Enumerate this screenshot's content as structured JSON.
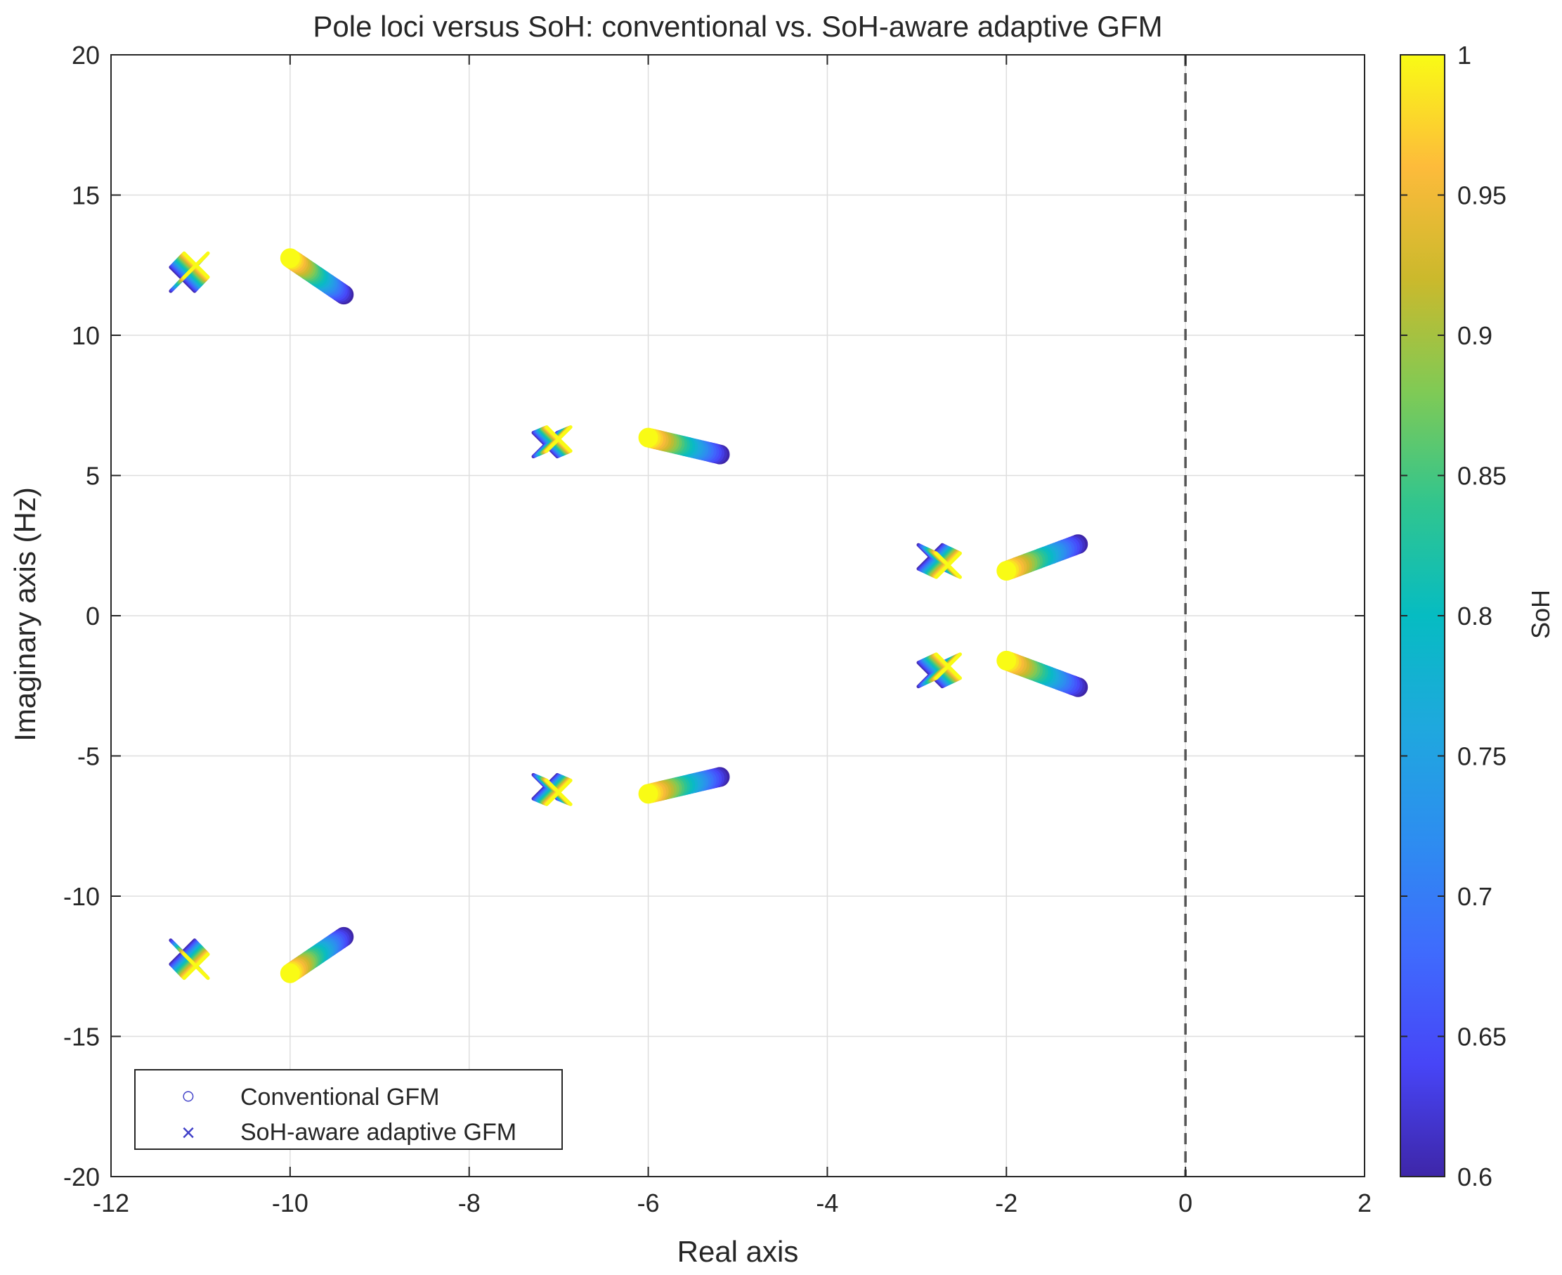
{
  "colors": {
    "axes_frame": "#262626",
    "grid": "#dedede",
    "marker": "#4040c8",
    "stability_line": "#555555"
  },
  "chart_data": {
    "type": "scatter",
    "title": "Pole loci versus SoH: conventional vs. SoH-aware adaptive GFM",
    "xlabel": "Real axis",
    "ylabel": "Imaginary axis (Hz)",
    "xlim": [
      -12,
      2
    ],
    "ylim": [
      -20,
      20
    ],
    "xticks": [
      -12,
      -10,
      -8,
      -6,
      -4,
      -2,
      0,
      2
    ],
    "yticks": [
      -20,
      -15,
      -10,
      -5,
      0,
      5,
      10,
      15,
      20
    ],
    "grid": true,
    "reference_line": {
      "x": 0,
      "style": "dashed"
    },
    "colorbar": {
      "label": "SoH",
      "limits": [
        0.6,
        1
      ],
      "ticks": [
        0.6,
        0.65,
        0.7,
        0.75,
        0.8,
        0.85,
        0.9,
        0.95,
        1
      ]
    },
    "legend": {
      "location": "bottom-left",
      "entries": [
        {
          "name": "Conventional GFM",
          "marker": "○"
        },
        {
          "name": "SoH-aware adaptive GFM",
          "marker": "×"
        }
      ]
    },
    "series": [
      {
        "name": "Conventional GFM",
        "marker": "o",
        "loci": [
          {
            "soh_range": [
              0.6,
              1
            ],
            "start": [
              -9.4,
              11.45
            ],
            "end": [
              -10.0,
              12.75
            ]
          },
          {
            "soh_range": [
              0.6,
              1
            ],
            "start": [
              -9.4,
              -11.45
            ],
            "end": [
              -10.0,
              -12.75
            ]
          },
          {
            "soh_range": [
              0.6,
              1
            ],
            "start": [
              -5.2,
              5.75
            ],
            "end": [
              -6.0,
              6.35
            ]
          },
          {
            "soh_range": [
              0.6,
              1
            ],
            "start": [
              -5.2,
              -5.75
            ],
            "end": [
              -6.0,
              -6.35
            ]
          },
          {
            "soh_range": [
              0.6,
              1
            ],
            "start": [
              -1.2,
              2.55
            ],
            "end": [
              -2.0,
              1.6
            ]
          },
          {
            "soh_range": [
              0.6,
              1
            ],
            "start": [
              -1.2,
              -2.55
            ],
            "end": [
              -2.0,
              -1.6
            ]
          }
        ]
      },
      {
        "name": "SoH-aware adaptive GFM",
        "marker": "x",
        "loci": [
          {
            "soh_range": [
              0.6,
              1
            ],
            "start": [
              -11.2,
              12.0
            ],
            "end": [
              -11.05,
              12.5
            ]
          },
          {
            "soh_range": [
              0.6,
              1
            ],
            "start": [
              -11.2,
              -12.0
            ],
            "end": [
              -11.05,
              -12.5
            ]
          },
          {
            "soh_range": [
              0.6,
              1
            ],
            "start": [
              -7.15,
              6.1
            ],
            "end": [
              -7.0,
              6.3
            ]
          },
          {
            "soh_range": [
              0.6,
              1
            ],
            "start": [
              -7.15,
              -6.1
            ],
            "end": [
              -7.0,
              -6.3
            ]
          },
          {
            "soh_range": [
              0.6,
              1
            ],
            "start": [
              -2.85,
              2.1
            ],
            "end": [
              -2.65,
              1.8
            ]
          },
          {
            "soh_range": [
              0.6,
              1
            ],
            "start": [
              -2.85,
              -2.1
            ],
            "end": [
              -2.65,
              -1.8
            ]
          }
        ]
      }
    ]
  }
}
